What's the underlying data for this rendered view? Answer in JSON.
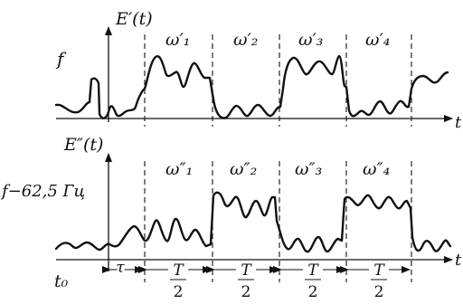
{
  "top_panel": {
    "axis_label": "E′(t)",
    "f_label": "f",
    "omega_labels": [
      "ω′₁",
      "ω′₂",
      "ω′₃",
      "ω′₄"
    ],
    "t_label": "t"
  },
  "bottom_panel": {
    "axis_label": "E″(t)",
    "f_label": "f−62,5 Гц",
    "omega_labels": [
      "ω″₁",
      "ω″₂",
      "ω″₃",
      "ω″₄"
    ],
    "t_label": "t"
  },
  "time_axis": {
    "t0_label": "t₀",
    "tau_label": "τ",
    "interval_numerator": "T",
    "interval_denominator": "2"
  }
}
